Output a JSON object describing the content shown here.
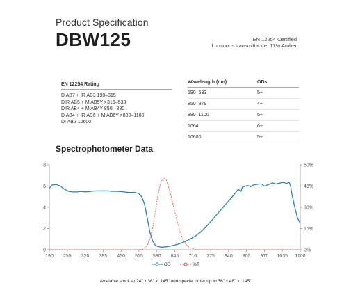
{
  "header": {
    "kicker": "Product Specification",
    "product": "DBW125",
    "cert_line1": "EN 12254 Certified",
    "cert_line2": "Luminous transmittance: 17% Amber"
  },
  "rating": {
    "heading": "EN 12254 Rating",
    "lines": [
      "D AB7 + IR AB3 190–315",
      "DIR AB5 + M AB5Y >315–533",
      "DIR AB4 + M AB4Y 850 –880",
      "D AB4 + IR AB6 + M AB6Y >880–1100",
      "DI AB2 10600"
    ]
  },
  "od_table": {
    "col1": "Wavelength (nm)",
    "col2": "ODs",
    "rows": [
      {
        "wl": "190–533",
        "od": "5+"
      },
      {
        "wl": "850–879",
        "od": "4+"
      },
      {
        "wl": "880–1100",
        "od": "5+"
      },
      {
        "wl": "1064",
        "od": "6+"
      },
      {
        "wl": "10600",
        "od": "5+"
      }
    ]
  },
  "chart_title": "Spectrophotometer Data",
  "chart_data": {
    "type": "line",
    "x_ticks": [
      "190",
      "255",
      "320",
      "385",
      "450",
      "515",
      "580",
      "645",
      "710",
      "775",
      "840",
      "905",
      "970",
      "1035",
      "1100"
    ],
    "xlim": [
      190,
      1100
    ],
    "y_left_ticks": [
      "0",
      "2",
      "4",
      "6",
      "8"
    ],
    "ylim_left": [
      0,
      8
    ],
    "y_right_ticks": [
      "0%",
      "15%",
      "30%",
      "45%",
      "60%"
    ],
    "ylim_right": [
      0,
      60
    ],
    "colors": {
      "od": "#2f7fb5",
      "t": "#e0574f",
      "axis": "#999999"
    },
    "series": [
      {
        "name": "OD",
        "axis": "left",
        "x": [
          190,
          200,
          215,
          230,
          245,
          260,
          275,
          290,
          305,
          320,
          340,
          360,
          380,
          400,
          420,
          440,
          460,
          480,
          500,
          515,
          525,
          535,
          545,
          555,
          565,
          575,
          585,
          595,
          605,
          620,
          640,
          660,
          680,
          700,
          720,
          740,
          760,
          780,
          800,
          820,
          840,
          860,
          875,
          885,
          890,
          900,
          910,
          920,
          930,
          940,
          950,
          960,
          970,
          980,
          990,
          1000,
          1010,
          1020,
          1030,
          1040,
          1050,
          1060,
          1065,
          1070,
          1080,
          1090,
          1100
        ],
        "y": [
          5.8,
          6.1,
          6.15,
          6.0,
          5.7,
          5.5,
          5.45,
          5.45,
          5.5,
          5.45,
          5.5,
          5.55,
          5.55,
          5.55,
          5.5,
          5.5,
          5.45,
          5.4,
          5.4,
          5.3,
          5.0,
          4.3,
          3.0,
          1.6,
          0.8,
          0.4,
          0.3,
          0.25,
          0.25,
          0.3,
          0.4,
          0.55,
          0.75,
          1.0,
          1.3,
          1.7,
          2.2,
          2.8,
          3.4,
          4.0,
          4.6,
          5.2,
          5.7,
          5.5,
          5.9,
          6.0,
          6.05,
          5.95,
          6.1,
          6.15,
          6.2,
          6.2,
          6.0,
          6.1,
          6.2,
          6.3,
          6.2,
          6.25,
          6.3,
          6.35,
          6.25,
          6.35,
          6.0,
          5.2,
          4.0,
          3.0,
          2.5
        ]
      },
      {
        "name": "%T",
        "axis": "right",
        "x": [
          190,
          515,
          530,
          545,
          555,
          565,
          575,
          585,
          595,
          605,
          615,
          625,
          635,
          645,
          655,
          665,
          675,
          685,
          695,
          705,
          715,
          725,
          1100
        ],
        "y": [
          0,
          0,
          0.5,
          3,
          8,
          16,
          28,
          40,
          48,
          51,
          49,
          43,
          35,
          27,
          19,
          12,
          7,
          4,
          2,
          1,
          0.4,
          0,
          0
        ]
      }
    ]
  },
  "legend": {
    "od": "OD",
    "t": "%T"
  },
  "footer": "Available stock at 24\" x 36\" x .145\" and special order up to 36\" x 48\" x .145\""
}
